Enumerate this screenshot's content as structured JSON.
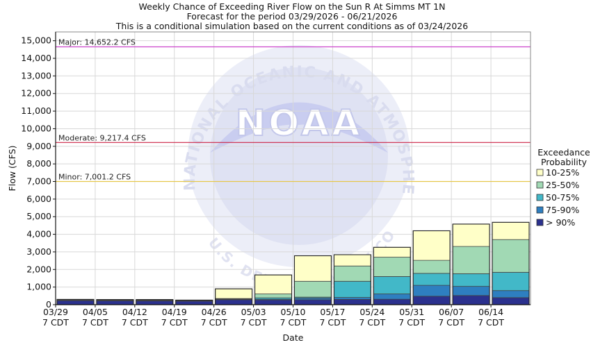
{
  "chart_data": {
    "type": "bar",
    "stacked": true,
    "title": [
      "Weekly Chance of Exceeding River Flow on the Sun R At Simms MT 1N",
      "Forecast for the period 03/29/2026 - 06/21/2026",
      "This is a conditional simulation based on the current conditions as of 03/24/2026"
    ],
    "xlabel": "Date",
    "ylabel": "Flow (CFS)",
    "ylim": [
      0,
      15500
    ],
    "yticks": [
      "0",
      "1,000",
      "2,000",
      "3,000",
      "4,000",
      "5,000",
      "6,000",
      "7,000",
      "8,000",
      "9,000",
      "10,000",
      "11,000",
      "12,000",
      "13,000",
      "14,000",
      "15,000"
    ],
    "ytick_values": [
      0,
      1000,
      2000,
      3000,
      4000,
      5000,
      6000,
      7000,
      8000,
      9000,
      10000,
      11000,
      12000,
      13000,
      14000,
      15000
    ],
    "categories": [
      [
        "03/29",
        "7 CDT"
      ],
      [
        "04/05",
        "7 CDT"
      ],
      [
        "04/12",
        "7 CDT"
      ],
      [
        "04/19",
        "7 CDT"
      ],
      [
        "04/26",
        "7 CDT"
      ],
      [
        "05/03",
        "7 CDT"
      ],
      [
        "05/10",
        "7 CDT"
      ],
      [
        "05/17",
        "7 CDT"
      ],
      [
        "05/24",
        "7 CDT"
      ],
      [
        "05/31",
        "7 CDT"
      ],
      [
        "06/07",
        "7 CDT"
      ],
      [
        "06/14",
        "7 CDT"
      ]
    ],
    "grid": true,
    "legend": {
      "title": [
        "Exceedance",
        "Probability"
      ],
      "placement": "right"
    },
    "series": [
      {
        "name": "> 90%",
        "color": "#2b318e",
        "values": [
          230,
          220,
          210,
          200,
          280,
          270,
          280,
          300,
          310,
          480,
          520,
          400
        ]
      },
      {
        "name": "75-90%",
        "color": "#2e7fc0",
        "values": [
          20,
          20,
          20,
          10,
          30,
          40,
          100,
          110,
          300,
          620,
          520,
          400
        ]
      },
      {
        "name": "50-75%",
        "color": "#42b8c8",
        "values": [
          20,
          20,
          20,
          20,
          20,
          80,
          50,
          920,
          990,
          680,
          720,
          1040
        ]
      },
      {
        "name": "25-50%",
        "color": "#a1d9b4",
        "values": [
          10,
          10,
          10,
          10,
          20,
          220,
          900,
          870,
          1100,
          740,
          1550,
          1860
        ]
      },
      {
        "name": "10-25%",
        "color": "#ffffc8",
        "values": [
          20,
          20,
          30,
          20,
          550,
          1080,
          1450,
          640,
          560,
          1680,
          1270,
          980
        ]
      }
    ],
    "legend_order": [
      "10-25%",
      "25-50%",
      "50-75%",
      "75-90%",
      "> 90%"
    ],
    "thresholds": [
      {
        "label": "Major: 14,652.2 CFS",
        "value": 14652.2,
        "color": "#cc44cc"
      },
      {
        "label": "Moderate: 9,217.4 CFS",
        "value": 9217.4,
        "color": "#cc2244"
      },
      {
        "label": "Minor: 7,001.2 CFS",
        "value": 7001.2,
        "color": "#e6c84a"
      }
    ],
    "watermark": {
      "logo_text": "NOAA",
      "ring_text": "NATIONAL OCEANIC AND ATMOSPHERIC ADMINISTRATION",
      "bottom_text": "U.S. DEPARTMENT OF COMMERCE"
    }
  }
}
